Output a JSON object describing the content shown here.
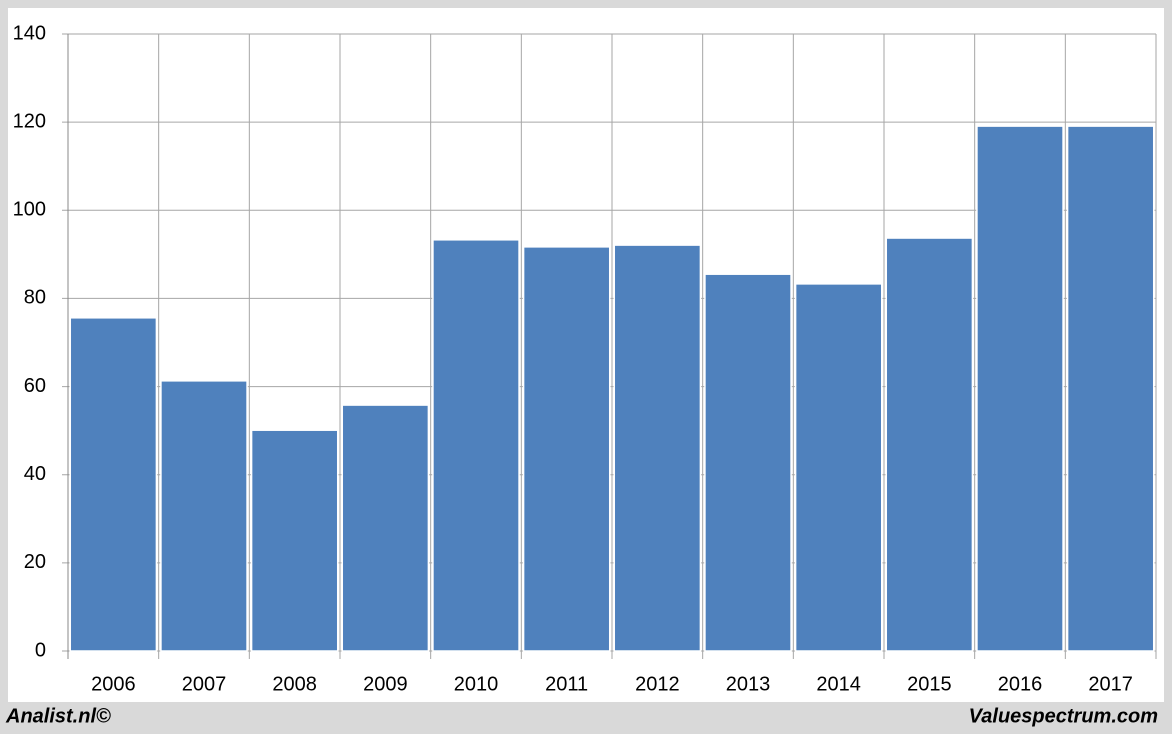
{
  "chart_data": {
    "type": "bar",
    "categories": [
      "2006",
      "2007",
      "2008",
      "2009",
      "2010",
      "2011",
      "2012",
      "2013",
      "2014",
      "2015",
      "2016",
      "2017"
    ],
    "values": [
      75.6,
      61.3,
      50.1,
      55.8,
      93.3,
      91.7,
      92.1,
      85.5,
      83.3,
      93.7,
      119.1,
      119.1
    ],
    "color": "#4f81bd",
    "ylim": [
      0,
      140
    ],
    "yticks": [
      0,
      20,
      40,
      60,
      80,
      100,
      120,
      140
    ],
    "grid": true
  },
  "footer": {
    "left": "Analist.nl©",
    "right": "Valuespectrum.com"
  }
}
